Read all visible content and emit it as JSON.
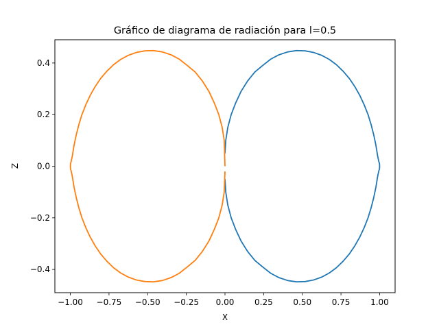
{
  "chart_data": {
    "type": "line",
    "title": "Gráfico de diagrama de radiación para l=0.5",
    "xlabel": "X",
    "ylabel": "Z",
    "xlim": [
      -1.1,
      1.1
    ],
    "ylim": [
      -0.49,
      0.49
    ],
    "xticks": [
      -1.0,
      -0.75,
      -0.5,
      -0.25,
      0.0,
      0.25,
      0.5,
      0.75,
      1.0
    ],
    "xtick_labels": [
      "−1.00",
      "−0.75",
      "−0.50",
      "−0.25",
      "0.00",
      "0.25",
      "0.50",
      "0.75",
      "1.00"
    ],
    "yticks": [
      -0.4,
      -0.2,
      0.0,
      0.2,
      0.4
    ],
    "ytick_labels": [
      "−0.4",
      "−0.2",
      "0.0",
      "0.2",
      "0.4"
    ],
    "grid": false,
    "colors": {
      "right_lobe": "#1f77b4",
      "left_lobe": "#ff7f0e"
    },
    "series": [
      {
        "x": [
          0.0,
          0.005,
          0.018,
          0.04,
          0.069,
          0.104,
          0.146,
          0.193,
          0.243,
          0.296,
          0.35,
          0.406,
          0.462,
          0.518,
          0.572,
          0.624,
          0.674,
          0.721,
          0.764,
          0.804,
          0.84,
          0.872,
          0.9,
          0.925,
          0.945,
          0.962,
          0.976,
          0.987,
          0.994,
          0.999,
          1.0,
          0.999,
          0.994,
          0.987,
          0.976,
          0.962,
          0.945,
          0.925,
          0.9,
          0.872,
          0.84,
          0.804,
          0.764,
          0.721,
          0.674,
          0.624,
          0.572,
          0.518,
          0.462,
          0.406,
          0.35,
          0.296,
          0.243,
          0.193,
          0.146,
          0.104,
          0.069,
          0.04,
          0.018,
          0.005,
          0.0
        ],
        "y": [
          0.05,
          0.1,
          0.15,
          0.2,
          0.245,
          0.29,
          0.33,
          0.365,
          0.39,
          0.415,
          0.432,
          0.443,
          0.448,
          0.447,
          0.441,
          0.43,
          0.414,
          0.393,
          0.368,
          0.34,
          0.308,
          0.274,
          0.238,
          0.2,
          0.161,
          0.121,
          0.081,
          0.04,
          0.02,
          0.01,
          0.0,
          -0.01,
          -0.02,
          -0.04,
          -0.081,
          -0.121,
          -0.161,
          -0.2,
          -0.238,
          -0.274,
          -0.308,
          -0.34,
          -0.368,
          -0.393,
          -0.414,
          -0.43,
          -0.441,
          -0.447,
          -0.448,
          -0.443,
          -0.432,
          -0.415,
          -0.39,
          -0.365,
          -0.33,
          -0.29,
          -0.245,
          -0.2,
          -0.15,
          -0.1,
          -0.05
        ]
      },
      {
        "x": [
          0.0,
          -0.005,
          -0.018,
          -0.04,
          -0.069,
          -0.104,
          -0.146,
          -0.193,
          -0.243,
          -0.296,
          -0.35,
          -0.406,
          -0.462,
          -0.518,
          -0.572,
          -0.624,
          -0.674,
          -0.721,
          -0.764,
          -0.804,
          -0.84,
          -0.872,
          -0.9,
          -0.925,
          -0.945,
          -0.962,
          -0.976,
          -0.987,
          -0.994,
          -0.999,
          -1.0,
          -0.999,
          -0.994,
          -0.987,
          -0.976,
          -0.962,
          -0.945,
          -0.925,
          -0.9,
          -0.872,
          -0.84,
          -0.804,
          -0.764,
          -0.721,
          -0.674,
          -0.624,
          -0.572,
          -0.518,
          -0.462,
          -0.406,
          -0.35,
          -0.296,
          -0.243,
          -0.193,
          -0.146,
          -0.104,
          -0.069,
          -0.04,
          -0.018,
          -0.005,
          0.0
        ],
        "y": [
          0.0,
          0.1,
          0.15,
          0.2,
          0.245,
          0.29,
          0.33,
          0.365,
          0.39,
          0.415,
          0.432,
          0.443,
          0.448,
          0.447,
          0.441,
          0.43,
          0.414,
          0.393,
          0.368,
          0.34,
          0.308,
          0.274,
          0.238,
          0.2,
          0.161,
          0.121,
          0.081,
          0.04,
          0.02,
          0.01,
          0.0,
          -0.01,
          -0.02,
          -0.04,
          -0.081,
          -0.121,
          -0.161,
          -0.2,
          -0.238,
          -0.274,
          -0.308,
          -0.34,
          -0.368,
          -0.393,
          -0.414,
          -0.43,
          -0.441,
          -0.447,
          -0.448,
          -0.443,
          -0.432,
          -0.415,
          -0.39,
          -0.365,
          -0.33,
          -0.29,
          -0.245,
          -0.2,
          -0.15,
          -0.1,
          -0.02
        ]
      }
    ]
  }
}
